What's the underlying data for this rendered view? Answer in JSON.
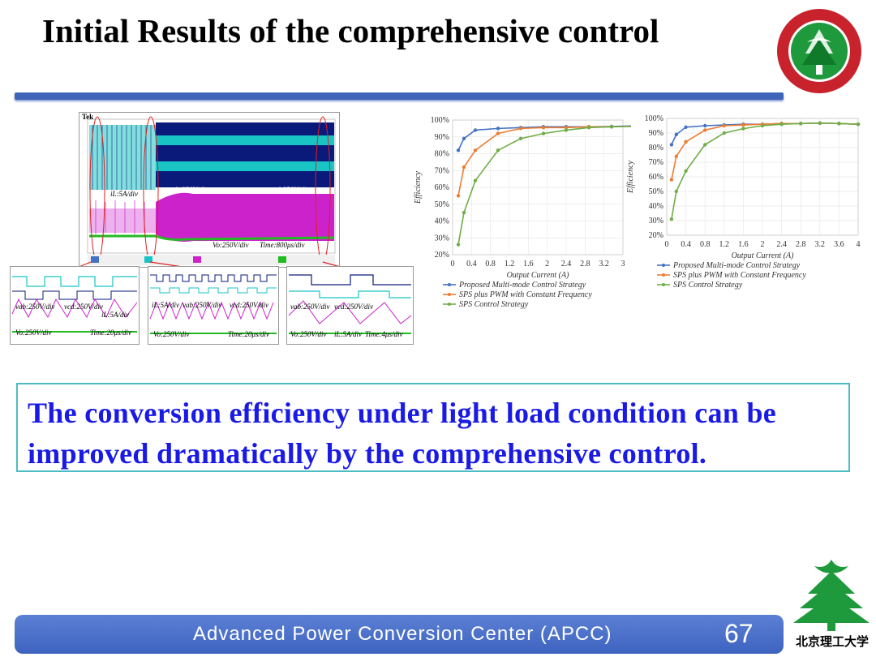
{
  "slide": {
    "title": "Initial Results of the comprehensive control",
    "callout": "The conversion efficiency under light load condition can be improved dramatically by the comprehensive control.",
    "footer": "Advanced  Power  Conversion  Center (APCC)",
    "page_number": "67",
    "logo_bottom_text": "北京理工大学"
  },
  "oscilloscope": {
    "main": {
      "label_tek": "Tek",
      "label_current": "iL:5A/div",
      "label_vab": "vab:250V/div",
      "label_vcd": "vcd:250V/div",
      "label_vo": "Vo:250V/div",
      "label_time": "Time:800μs/div"
    },
    "sub1": {
      "label_vab": "vab:250V/div",
      "label_vcd": "vcd:250V/div",
      "label_il": "iL:5A/div",
      "label_vo": "Vo:250V/div",
      "label_time": "Time:20μs/div"
    },
    "sub2": {
      "label_il": "iL:5A/div",
      "label_vab": "vab:250V/div",
      "label_vcd": "vcd:250V/div",
      "label_vo": "Vo:250V/div",
      "label_time": "Time:20μs/div"
    },
    "sub3": {
      "label_vab": "vab:250V/div",
      "label_vcd": "vcd:250V/div",
      "label_vo": "Vo:250V/div",
      "label_il": "iL:5A/div",
      "label_time": "Time:4μs/div"
    }
  },
  "colors": {
    "title_bar": "#3f63b8",
    "callout_text": "#1a1ae6",
    "callout_border": "#4bbcc4",
    "series_proposed": "#4472c4",
    "series_sps_pwm": "#ed7d31",
    "series_sps": "#70ad47",
    "osc_cyan": "#19c4c4",
    "osc_magenta": "#cc22cc",
    "osc_navy": "#0a1a7a",
    "osc_green": "#22bb22"
  },
  "chart_data": [
    {
      "type": "line",
      "xlabel": "Output Current (A)",
      "ylabel": "Efficiency",
      "xlim": [
        0,
        3
      ],
      "ylim": [
        20,
        100
      ],
      "x_ticks": [
        "0",
        "0.4",
        "0.8",
        "1.2",
        "1.6",
        "2",
        "2.4",
        "2.8",
        "3.2",
        "3"
      ],
      "y_ticks": [
        "20%",
        "30%",
        "40%",
        "50%",
        "60%",
        "70%",
        "80%",
        "90%",
        "100%"
      ],
      "legend_position": "bottom",
      "series": [
        {
          "name": "Proposed Multi-mode Control Strategy",
          "x": [
            0.1,
            0.2,
            0.4,
            0.8,
            1.2,
            1.6,
            2.0,
            2.4,
            2.8,
            3.2
          ],
          "y": [
            82,
            89,
            94,
            95,
            95.5,
            96,
            96,
            96,
            96.2,
            96.5
          ]
        },
        {
          "name": "SPS plus PWM with Constant Frequency",
          "x": [
            0.1,
            0.2,
            0.4,
            0.8,
            1.2,
            1.6,
            2.0,
            2.4,
            2.8,
            3.2
          ],
          "y": [
            55,
            72,
            82,
            92,
            95,
            95.5,
            95.5,
            96,
            96,
            96.3
          ]
        },
        {
          "name": "SPS Control Strategy",
          "x": [
            0.1,
            0.2,
            0.4,
            0.8,
            1.2,
            1.6,
            2.0,
            2.4,
            2.8,
            3.2
          ],
          "y": [
            26,
            45,
            64,
            82,
            89,
            92,
            94,
            95.5,
            96,
            96.3
          ]
        }
      ]
    },
    {
      "type": "line",
      "xlabel": "Output Current (A)",
      "ylabel": "Efficiency",
      "xlim": [
        0,
        4
      ],
      "ylim": [
        20,
        100
      ],
      "x_ticks": [
        "0",
        "0.4",
        "0.8",
        "1.2",
        "1.6",
        "2",
        "2.4",
        "2.8",
        "3.2",
        "3.6",
        "4"
      ],
      "y_ticks": [
        "20%",
        "30%",
        "40%",
        "50%",
        "60%",
        "70%",
        "80%",
        "90%",
        "100%"
      ],
      "legend_position": "bottom",
      "series": [
        {
          "name": "Proposed Multi-mode Control Strategy",
          "x": [
            0.1,
            0.2,
            0.4,
            0.8,
            1.2,
            1.6,
            2.0,
            2.4,
            2.8,
            3.2,
            3.6,
            4.0
          ],
          "y": [
            82,
            89,
            94,
            95,
            95.5,
            96,
            96,
            96.5,
            96.5,
            96.8,
            96.5,
            96
          ]
        },
        {
          "name": "SPS plus PWM with Constant Frequency",
          "x": [
            0.1,
            0.2,
            0.4,
            0.8,
            1.2,
            1.6,
            2.0,
            2.4,
            2.8,
            3.2,
            3.6,
            4.0
          ],
          "y": [
            58,
            74,
            84,
            92,
            95,
            95.5,
            96,
            96.5,
            96.5,
            96.8,
            96.5,
            96
          ]
        },
        {
          "name": "SPS Control Strategy",
          "x": [
            0.1,
            0.2,
            0.4,
            0.8,
            1.2,
            1.6,
            2.0,
            2.4,
            2.8,
            3.2,
            3.6,
            4.0
          ],
          "y": [
            31,
            50,
            64,
            82,
            90,
            93,
            95,
            96,
            96.5,
            96.8,
            96.5,
            96
          ]
        }
      ]
    }
  ]
}
